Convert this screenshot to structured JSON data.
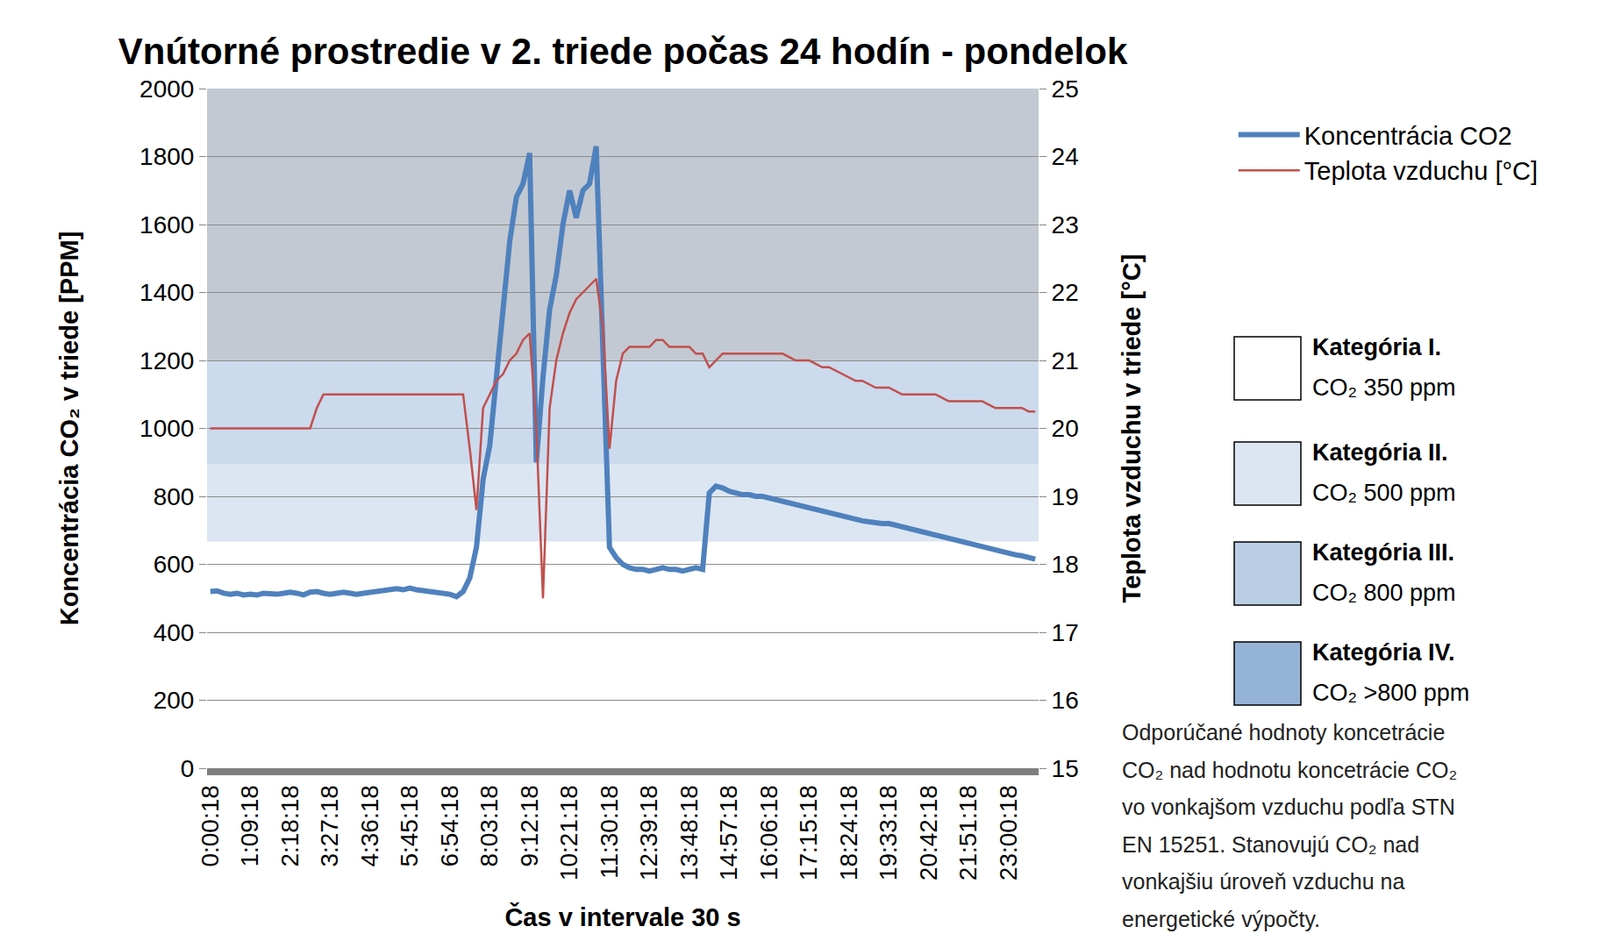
{
  "chart_data": {
    "type": "line",
    "title": "Vnútorné prostredie v 2. triede počas 24 hodín - pondelok",
    "x_label": "Čas v intervale 30 s",
    "y_label": "Koncentrácia CO₂ v triede [PPM]",
    "y2_label": "Teplota vzduchu v triede [°C]",
    "categories": [
      "0:00:18",
      null,
      null,
      null,
      null,
      null,
      "1:09:18",
      null,
      null,
      null,
      null,
      null,
      "2:18:18",
      null,
      null,
      null,
      null,
      null,
      "3:27:18",
      null,
      null,
      null,
      null,
      null,
      "4:36:18",
      null,
      null,
      null,
      null,
      null,
      "5:45:18",
      null,
      null,
      null,
      null,
      null,
      "6:54:18",
      null,
      null,
      null,
      null,
      null,
      "8:03:18",
      null,
      null,
      null,
      null,
      null,
      "9:12:18",
      null,
      null,
      null,
      null,
      null,
      "10:21:18",
      null,
      null,
      null,
      null,
      null,
      "11:30:18",
      null,
      null,
      null,
      null,
      null,
      "12:39:18",
      null,
      null,
      null,
      null,
      null,
      "13:48:18",
      null,
      null,
      null,
      null,
      null,
      "14:57:18",
      null,
      null,
      null,
      null,
      null,
      "16:06:18",
      null,
      null,
      null,
      null,
      null,
      "17:15:18",
      null,
      null,
      null,
      null,
      null,
      "18:24:18",
      null,
      null,
      null,
      null,
      null,
      "19:33:18",
      null,
      null,
      null,
      null,
      null,
      "20:42:18",
      null,
      null,
      null,
      null,
      null,
      "21:51:18",
      null,
      null,
      null,
      null,
      null,
      "23:00:18",
      null,
      null,
      null,
      null
    ],
    "series": [
      {
        "name": "Koncentrácia CO2",
        "color": "#4f81bd",
        "line_style": "solid",
        "values": [
          520,
          522,
          515,
          512,
          515,
          510,
          512,
          510,
          515,
          512,
          512,
          515,
          518,
          515,
          510,
          518,
          520,
          515,
          512,
          515,
          518,
          515,
          512,
          515,
          518,
          520,
          522,
          525,
          528,
          525,
          530,
          525,
          522,
          520,
          518,
          515,
          512,
          505,
          520,
          560,
          650,
          850,
          950,
          1150,
          1350,
          1550,
          1680,
          1720,
          1810,
          900,
          1150,
          1350,
          1450,
          1600,
          1700,
          1620,
          1700,
          1720,
          1830,
          1200,
          650,
          620,
          600,
          590,
          585,
          585,
          580,
          585,
          590,
          585,
          585,
          580,
          585,
          590,
          585,
          810,
          830,
          825,
          815,
          810,
          805,
          805,
          800,
          800,
          795,
          790,
          785,
          780,
          775,
          770,
          765,
          760,
          755,
          750,
          745,
          740,
          735,
          730,
          728,
          725,
          722,
          720,
          720,
          715,
          710,
          705,
          700,
          695,
          690,
          685,
          680,
          675,
          670,
          665,
          660,
          655,
          650,
          645,
          640,
          635,
          632,
          628,
          625,
          620,
          615
        ]
      },
      {
        "name": "Teplota vzduchu [°C]",
        "color": "#c0504d",
        "axis": "y2",
        "line_style": "solid",
        "values": [
          20.0,
          20.0,
          20.0,
          20.0,
          20.0,
          20.0,
          20.0,
          20.0,
          20.0,
          20.0,
          20.0,
          20.0,
          20.0,
          20.0,
          20.0,
          20.0,
          20.3,
          20.5,
          20.5,
          20.5,
          20.5,
          20.5,
          20.5,
          20.5,
          20.5,
          20.5,
          20.5,
          20.5,
          20.5,
          20.5,
          20.5,
          20.5,
          20.5,
          20.5,
          20.5,
          20.5,
          20.5,
          20.5,
          20.5,
          19.7,
          18.8,
          20.3,
          20.5,
          20.7,
          20.8,
          21.0,
          21.1,
          21.3,
          21.4,
          20.0,
          17.5,
          20.3,
          21.0,
          21.4,
          21.7,
          21.9,
          22.0,
          22.1,
          22.2,
          21.5,
          19.7,
          20.7,
          21.1,
          21.2,
          21.2,
          21.2,
          21.2,
          21.3,
          21.3,
          21.2,
          21.2,
          21.2,
          21.2,
          21.1,
          21.1,
          20.9,
          21.0,
          21.1,
          21.1,
          21.1,
          21.1,
          21.1,
          21.1,
          21.1,
          21.1,
          21.1,
          21.1,
          21.05,
          21.0,
          21.0,
          21.0,
          20.95,
          20.9,
          20.9,
          20.85,
          20.8,
          20.75,
          20.7,
          20.7,
          20.65,
          20.6,
          20.6,
          20.6,
          20.55,
          20.5,
          20.5,
          20.5,
          20.5,
          20.5,
          20.5,
          20.45,
          20.4,
          20.4,
          20.4,
          20.4,
          20.4,
          20.4,
          20.35,
          20.3,
          20.3,
          20.3,
          20.3,
          20.3,
          20.25,
          20.25
        ]
      }
    ],
    "ylim": [
      0,
      2000
    ],
    "yticks": [
      0,
      200,
      400,
      600,
      800,
      1000,
      1200,
      1400,
      1600,
      1800,
      2000
    ],
    "y2lim": [
      15,
      25
    ],
    "y2ticks": [
      15,
      16,
      17,
      18,
      19,
      20,
      21,
      22,
      23,
      24,
      25
    ],
    "grid": true,
    "legend": "right",
    "bands": [
      {
        "from": 667,
        "to": 895,
        "color": "#dce6f2"
      },
      {
        "from": 895,
        "to": 1200,
        "color": "#ccdaed"
      },
      {
        "from": 1200,
        "to": 2000,
        "color": "#c3c9d2"
      }
    ],
    "zones": [
      {
        "name": "Kategória I.",
        "text": "CO₂ 350 ppm",
        "color": "#ffffff"
      },
      {
        "name": "Kategória II.",
        "text": "CO₂ 500 ppm",
        "color": "#dce6f2"
      },
      {
        "name": "Kategória III.",
        "text": "CO₂ 800 ppm",
        "color": "#b9cde5"
      },
      {
        "name": "Kategória IV.",
        "text": "CO₂ >800 ppm",
        "color": "#95b3d7"
      }
    ],
    "note": [
      "Odporúčané hodnoty koncetrácie",
      "CO₂ nad hodnotu koncetrácie CO₂",
      "vo vonkajšom vzduchu podľa STN",
      "EN 15251. Stanovujú CO₂ nad",
      "vonkajšiu úroveň vzduchu na",
      "energetické výpočty."
    ]
  }
}
